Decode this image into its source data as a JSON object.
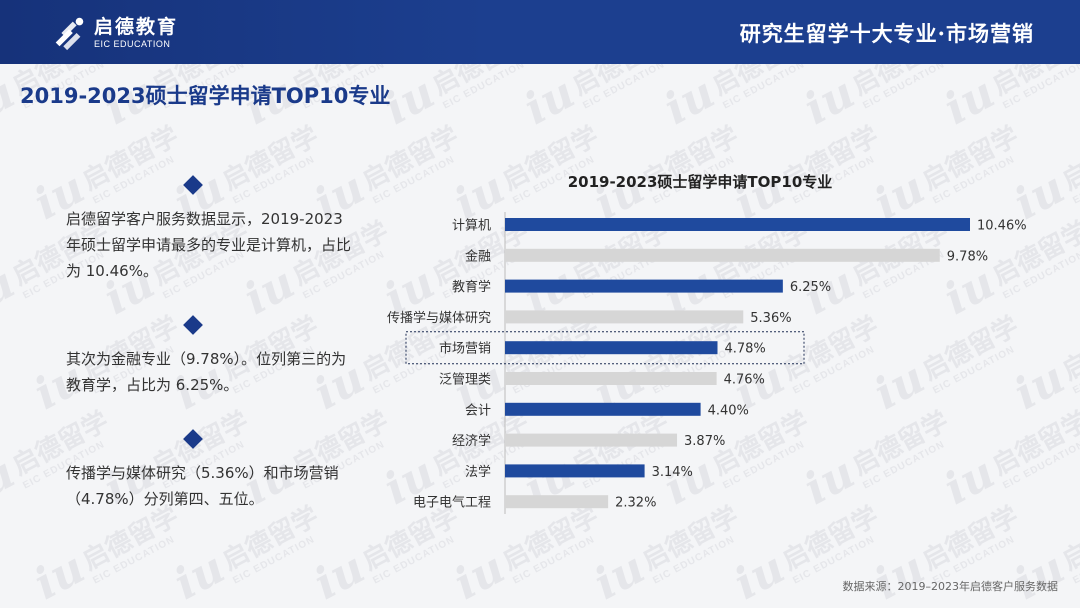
{
  "header": {
    "logo_cn": "启德教育",
    "logo_en": "EIC EDUCATION",
    "title": "研究生留学十大专业·市场营销"
  },
  "page_title": "2019-2023硕士留学申请TOP10专业",
  "watermark": {
    "iu": "iu",
    "cn": "启德留学",
    "en": "EIC EDUCATION"
  },
  "paragraphs": [
    "启德留学客户服务数据显示，2019-2023年硕士留学申请最多的专业是计算机，占比为 10.46%。",
    "其次为金融专业（9.78%）。位列第三的为教育学，占比为 6.25%。",
    "传播学与媒体研究（5.36%）和市场营销（4.78%）分列第四、五位。"
  ],
  "source": "数据来源：2019–2023年启德客户服务数据",
  "colors": {
    "primary": "#1a3a8a",
    "bar_blue": "#1f4a9e",
    "bar_gray": "#d6d6d6"
  },
  "chart_data": {
    "type": "bar",
    "orientation": "horizontal",
    "title": "2019-2023硕士留学申请TOP10专业",
    "categories": [
      "计算机",
      "金融",
      "教育学",
      "传播学与媒体研究",
      "市场营销",
      "泛管理类",
      "会计",
      "经济学",
      "法学",
      "电子电气工程"
    ],
    "values": [
      10.46,
      9.78,
      6.25,
      5.36,
      4.78,
      4.76,
      4.4,
      3.87,
      3.14,
      2.32
    ],
    "value_labels": [
      "10.46%",
      "9.78%",
      "6.25%",
      "5.36%",
      "4.78%",
      "4.76%",
      "4.40%",
      "3.87%",
      "3.14%",
      "2.32%"
    ],
    "highlight_pattern": "alternating blue / gray",
    "highlighted_category": "市场营销",
    "xlim": [
      0,
      10.46
    ],
    "grid": false,
    "legend": "none"
  }
}
